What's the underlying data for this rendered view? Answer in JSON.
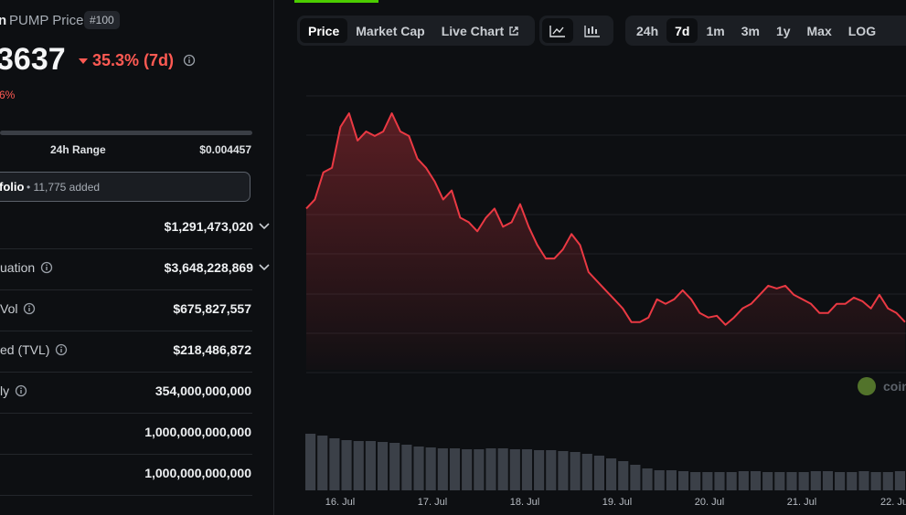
{
  "header": {
    "name_fragment": "n",
    "title": "PUMP Price",
    "rank": "#100",
    "price_fragment": "3637",
    "change": "35.3% (7d)",
    "sub_change": "6%"
  },
  "range": {
    "label": "24h Range",
    "high": "$0.004457"
  },
  "portfolio": {
    "label": "folio",
    "added": "• 11,775 added"
  },
  "stats": [
    {
      "value": "$1,291,473,020"
    },
    {
      "label": "uation",
      "value": "$3,648,228,869"
    },
    {
      "label": "Vol",
      "value": "$675,827,557"
    },
    {
      "label": "ed (TVL)",
      "value": "$218,486,872"
    },
    {
      "label": "ly",
      "value": "354,000,000,000"
    },
    {
      "value": "1,000,000,000,000"
    },
    {
      "value": "1,000,000,000,000"
    }
  ],
  "tabs": [
    "Price",
    "Market Cap",
    "Live Chart"
  ],
  "ranges": [
    "24h",
    "7d",
    "1m",
    "3m",
    "1y",
    "Max",
    "LOG"
  ],
  "watermark": "coin",
  "chart_data": {
    "type": "line",
    "x_axis_labels": [
      "16. Jul",
      "17. Jul",
      "18. Jul",
      "19. Jul",
      "20. Jul",
      "21. Jul",
      "22. Ju"
    ],
    "color": "#ea3943",
    "ylim": [
      0.0028,
      0.0076
    ],
    "values": [
      0.005625,
      0.005784,
      0.006261,
      0.00634,
      0.007056,
      0.007294,
      0.006817,
      0.006976,
      0.006897,
      0.006976,
      0.007294,
      0.006976,
      0.006897,
      0.006499,
      0.00634,
      0.006102,
      0.005784,
      0.005943,
      0.005466,
      0.005386,
      0.005227,
      0.005466,
      0.005625,
      0.005307,
      0.005386,
      0.005704,
      0.005307,
      0.004989,
      0.00475,
      0.00475,
      0.004909,
      0.005179,
      0.004989,
      0.004512,
      0.004353,
      0.004194,
      0.004035,
      0.003876,
      0.003637,
      0.003637,
      0.003717,
      0.004035,
      0.003955,
      0.004035,
      0.004194,
      0.004035,
      0.003796,
      0.003717,
      0.003748,
      0.003589,
      0.003717,
      0.003876,
      0.003955,
      0.004114,
      0.004273,
      0.004225,
      0.004273,
      0.004114,
      0.004035,
      0.003955,
      0.003796,
      0.003796,
      0.003955,
      0.003955,
      0.004066,
      0.004003,
      0.003876,
      0.004114,
      0.003876,
      0.003796,
      0.003637
    ],
    "volume": {
      "color": "#3b4048",
      "ylim": [
        0,
        70
      ],
      "values": [
        62,
        60,
        57,
        55,
        54,
        54,
        53,
        52,
        50,
        48,
        47,
        46,
        46,
        45,
        45,
        46,
        46,
        45,
        45,
        44,
        44,
        43,
        42,
        40,
        38,
        35,
        32,
        28,
        24,
        22,
        22,
        21,
        20,
        20,
        20,
        20,
        21,
        21,
        20,
        20,
        20,
        20,
        21,
        21,
        20,
        20,
        21,
        20,
        20,
        21
      ]
    }
  }
}
